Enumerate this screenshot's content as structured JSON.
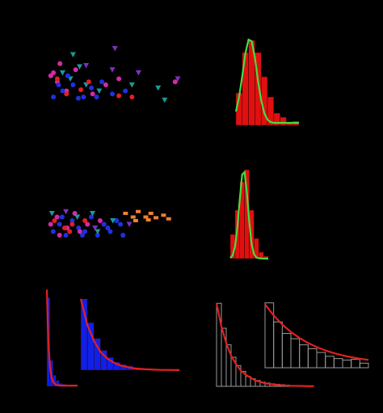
{
  "chart_data": [
    {
      "type": "scatter",
      "xlim": [
        0,
        10
      ],
      "ylim": [
        0,
        10
      ],
      "series": [
        {
          "color": "#1a9a9a",
          "marker": "triangle",
          "x": [
            2.0,
            2.5,
            1.8,
            3.0,
            8.5,
            9.0,
            6.5,
            4.0,
            1.2
          ],
          "y": [
            9,
            7,
            5,
            4,
            3.5,
            1.5,
            4,
            3,
            6
          ]
        },
        {
          "color": "#d42aa8",
          "marker": "circle",
          "x": [
            0.5,
            0.8,
            1.5,
            2.2,
            3.5,
            4.5,
            5.5,
            1.0,
            0.3,
            9.8
          ],
          "y": [
            6,
            4.5,
            3,
            6.5,
            2.5,
            4,
            5,
            7.5,
            5.5,
            4.5
          ]
        },
        {
          "color": "#2030e0",
          "marker": "circle",
          "x": [
            0.5,
            1.2,
            2.0,
            2.8,
            3.4,
            4.2,
            5.0,
            6.0,
            1.6,
            2.4,
            0.9,
            3.8
          ],
          "y": [
            2,
            3,
            4,
            2,
            3.5,
            4.5,
            2.5,
            3,
            5.5,
            1.8,
            4,
            2
          ]
        },
        {
          "color": "#e02020",
          "marker": "circle",
          "x": [
            1.5,
            2.6,
            5.5,
            6.5,
            0.8,
            3.2
          ],
          "y": [
            2.5,
            3.2,
            2.2,
            2,
            5,
            4.5
          ]
        },
        {
          "color": "#8030c0",
          "marker": "triangle",
          "x": [
            5.2,
            7.0,
            5.0,
            3.0,
            10.0
          ],
          "y": [
            10,
            6,
            6.5,
            7.2,
            5
          ]
        }
      ]
    },
    {
      "type": "histogram",
      "xlim": [
        0,
        10
      ],
      "ylim": [
        0,
        12
      ],
      "color": "#e01010",
      "bins": [
        0,
        1,
        2,
        3,
        4,
        5,
        6,
        7,
        8,
        9,
        10
      ],
      "counts": [
        4,
        9,
        10.5,
        9,
        6,
        3.5,
        1.5,
        1,
        0.3,
        0.5
      ],
      "fit": {
        "color": "#40e040",
        "x": [
          0,
          0.5,
          1,
          1.5,
          2,
          2.5,
          3,
          3.5,
          4,
          4.5,
          5,
          5.5,
          6,
          7,
          8,
          9,
          10
        ],
        "y": [
          1.7,
          3.5,
          6.1,
          8.9,
          10.6,
          10.4,
          8.4,
          5.5,
          3.1,
          1.5,
          0.7,
          0.4,
          0.3,
          0.3,
          0.3,
          0.3,
          0.3
        ]
      }
    },
    {
      "type": "scatter",
      "xlim": [
        0,
        10
      ],
      "ylim": [
        0,
        10
      ],
      "series": [
        {
          "color": "#2030e0",
          "marker": "circle",
          "x": [
            0.5,
            1,
            1.5,
            2,
            2.5,
            3,
            3.5,
            4,
            4.5,
            5,
            5.5,
            6,
            1.2,
            2.8,
            4.8,
            5.8
          ],
          "y": [
            3,
            5,
            2,
            6,
            4,
            3,
            7,
            2,
            5,
            3,
            6,
            2,
            7,
            2,
            4,
            5
          ]
        },
        {
          "color": "#d42aa8",
          "marker": "circle",
          "x": [
            0.3,
            0.8,
            1.6,
            2.2,
            3.2,
            4.2,
            1,
            2.6
          ],
          "y": [
            5,
            7,
            4,
            8,
            5,
            6,
            2,
            3
          ]
        },
        {
          "color": "#e02020",
          "marker": "circle",
          "x": [
            0.6,
            1.4,
            2.0,
            3.0,
            1.8
          ],
          "y": [
            6,
            4,
            5,
            6,
            3
          ]
        },
        {
          "color": "#1a9a9a",
          "marker": "triangle",
          "x": [
            0.4,
            2.4,
            3.6,
            5.2,
            4.0
          ],
          "y": [
            8,
            7,
            8,
            6,
            3
          ]
        },
        {
          "color": "#f08030",
          "marker": "square",
          "x": [
            6.2,
            6.8,
            7.2,
            7.8,
            8.2,
            8.6,
            9.2,
            9.6,
            7.0,
            8.0
          ],
          "y": [
            8,
            7,
            8.5,
            7,
            8,
            6.8,
            7.5,
            6.5,
            6,
            6.2
          ]
        },
        {
          "color": "#8030c0",
          "marker": "triangle",
          "x": [
            1.5,
            3.8,
            6.5
          ],
          "y": [
            8.5,
            4,
            5
          ]
        }
      ]
    },
    {
      "type": "histogram",
      "xlim": [
        0,
        8
      ],
      "ylim": [
        0,
        13
      ],
      "color": "#e01010",
      "bins": [
        0,
        1,
        2,
        3,
        4,
        5,
        6,
        7,
        8
      ],
      "counts": [
        3,
        6,
        9.5,
        11,
        6,
        2.5,
        0.8,
        0.3
      ],
      "fit": {
        "color": "#40e040",
        "x": [
          0,
          0.5,
          1,
          1.5,
          2,
          2.5,
          3,
          3.5,
          4,
          4.5,
          5,
          5.5,
          6,
          7,
          8
        ],
        "y": [
          0.09,
          0.4,
          1.5,
          3.9,
          7.4,
          10.4,
          10.7,
          8.1,
          4.5,
          1.8,
          0.55,
          0.15,
          0.04,
          0,
          0
        ]
      }
    },
    {
      "type": "histogram",
      "xlim": [
        0,
        10
      ],
      "ylim": [
        0,
        14
      ],
      "color": "#1020e8",
      "bins": [
        0,
        1,
        2,
        3,
        4,
        5,
        6,
        7,
        8,
        9,
        10
      ],
      "counts": [
        12,
        3.5,
        1.5,
        0.8,
        0.4,
        0.3,
        0.2,
        0.1,
        0.1,
        0.1
      ],
      "fit": {
        "color": "#e02020",
        "x": [
          0,
          0.25,
          0.5,
          1,
          1.5,
          2,
          3,
          4,
          5,
          6,
          8,
          10
        ],
        "y": [
          13.1,
          8.9,
          5.9,
          2.7,
          1.3,
          0.6,
          0.2,
          0.12,
          0.1,
          0.1,
          0.1,
          0.1
        ]
      }
    },
    {
      "type": "histogram",
      "xlim": [
        0,
        15
      ],
      "ylim": [
        0,
        10
      ],
      "color": "#1020e8",
      "bins": [
        0,
        1,
        2,
        3,
        4,
        5,
        6,
        7,
        8,
        9,
        10,
        11,
        12,
        13,
        14,
        15
      ],
      "counts": [
        9,
        6,
        4,
        2.5,
        1.6,
        1,
        0.7,
        0.5,
        0.3,
        0.2,
        0.2,
        0.1,
        0.1,
        0.1,
        0.1
      ],
      "fit": {
        "color": "#e02020",
        "x": [
          0,
          1,
          2,
          3,
          4,
          5,
          6,
          8,
          10,
          12,
          15
        ],
        "y": [
          9,
          5.7,
          3.7,
          2.3,
          1.5,
          0.95,
          0.6,
          0.25,
          0.1,
          0.04,
          0.01
        ]
      }
    },
    {
      "type": "histogram",
      "xlim": [
        0,
        20
      ],
      "ylim": [
        0,
        11
      ],
      "outline": "#9a9a9a",
      "bins": [
        0,
        1,
        2,
        3,
        4,
        5,
        6,
        7,
        8,
        9,
        10,
        11,
        12,
        13,
        14,
        15,
        16,
        17,
        18,
        19,
        20
      ],
      "counts": [
        10,
        7,
        5,
        3.5,
        2.5,
        1.8,
        1.2,
        0.9,
        0.7,
        0.5,
        0.4,
        0.3,
        0.25,
        0.2,
        0.15,
        0.1,
        0.1,
        0.1,
        0.05,
        0.05
      ],
      "fit": {
        "color": "#e02020",
        "x": [
          0,
          1,
          2,
          3,
          4,
          5,
          6,
          8,
          10,
          12,
          15,
          20
        ],
        "y": [
          10,
          7.2,
          5.2,
          3.7,
          2.7,
          1.9,
          1.4,
          0.7,
          0.37,
          0.19,
          0.07,
          0.01
        ]
      }
    },
    {
      "type": "histogram",
      "xlim": [
        0,
        12
      ],
      "ylim": [
        0,
        9
      ],
      "outline": "#9a9a9a",
      "bins": [
        0,
        1,
        2,
        3,
        4,
        5,
        6,
        7,
        8,
        9,
        10,
        11,
        12
      ],
      "counts": [
        8.5,
        6,
        4.5,
        3.8,
        3,
        2.5,
        2,
        1.5,
        1.2,
        1,
        1.1,
        0.6
      ],
      "fit": {
        "color": "#e02020",
        "x": [
          0,
          1,
          2,
          3,
          4,
          5,
          6,
          7,
          8,
          9,
          10,
          11,
          12
        ],
        "y": [
          8.3,
          6.85,
          5.66,
          4.69,
          3.9,
          3.24,
          2.71,
          2.27,
          1.92,
          1.62,
          1.38,
          1.19,
          1.03
        ]
      }
    }
  ]
}
